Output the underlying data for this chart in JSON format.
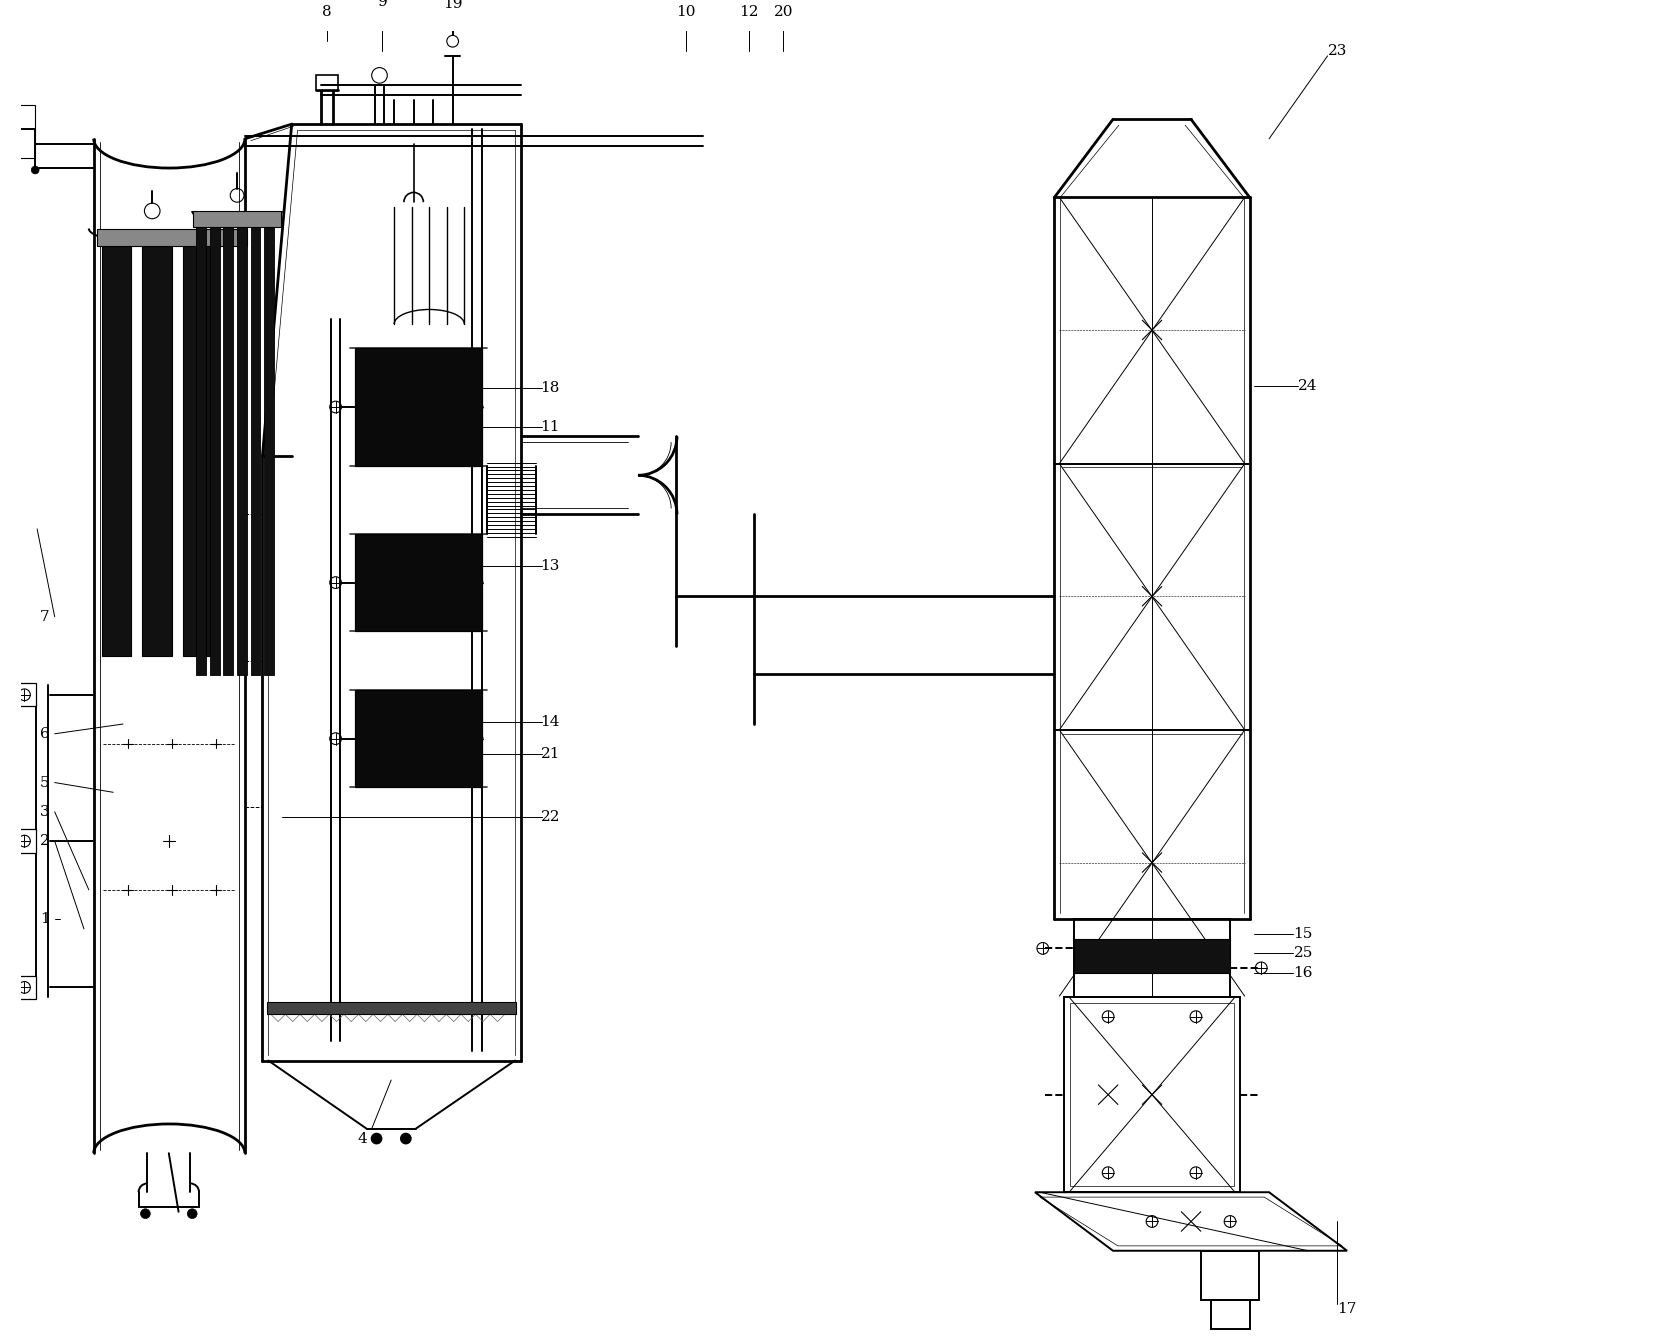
{
  "bg_color": "#ffffff",
  "lc": "#000000",
  "dark": "#111111",
  "figsize": [
    16.71,
    13.37
  ],
  "dpi": 100,
  "lw_main": 1.4,
  "lw_thick": 2.0,
  "lw_thin": 0.7
}
